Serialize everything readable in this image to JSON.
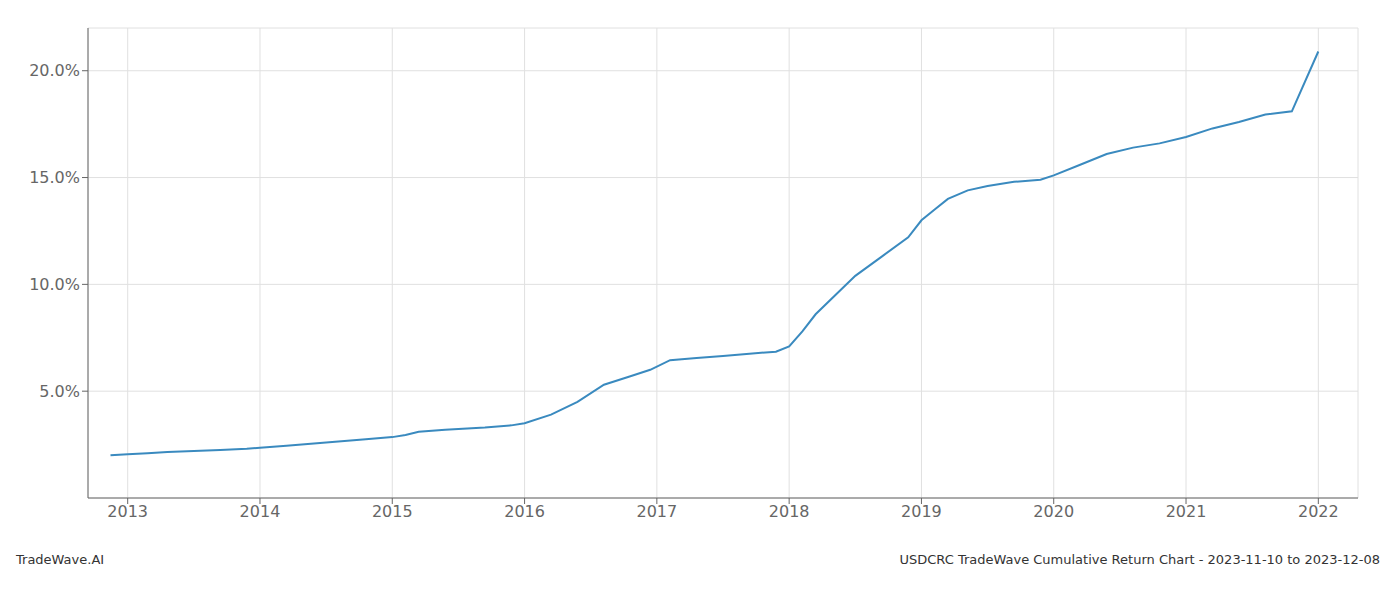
{
  "chart_data": {
    "type": "line",
    "annotations": [
      "TradeWave.AI",
      "USDCRC TradeWave Cumulative Return Chart - 2023-11-10 to 2023-12-08"
    ],
    "x": [
      2012.87,
      2013.0,
      2013.15,
      2013.3,
      2013.5,
      2013.7,
      2013.9,
      2014.0,
      2014.2,
      2014.5,
      2014.8,
      2015.0,
      2015.1,
      2015.2,
      2015.4,
      2015.7,
      2015.9,
      2016.0,
      2016.2,
      2016.4,
      2016.6,
      2016.8,
      2016.95,
      2017.1,
      2017.3,
      2017.5,
      2017.7,
      2017.9,
      2018.0,
      2018.1,
      2018.2,
      2018.35,
      2018.5,
      2018.7,
      2018.9,
      2019.0,
      2019.1,
      2019.2,
      2019.35,
      2019.5,
      2019.7,
      2019.9,
      2020.0,
      2020.2,
      2020.4,
      2020.6,
      2020.8,
      2021.0,
      2021.2,
      2021.4,
      2021.6,
      2021.8,
      2022.0
    ],
    "values": [
      2.0,
      2.05,
      2.1,
      2.15,
      2.2,
      2.25,
      2.3,
      2.35,
      2.45,
      2.6,
      2.75,
      2.85,
      2.95,
      3.1,
      3.2,
      3.3,
      3.4,
      3.5,
      3.9,
      4.5,
      5.3,
      5.7,
      6.0,
      6.45,
      6.55,
      6.65,
      6.75,
      6.85,
      7.1,
      7.8,
      8.6,
      9.5,
      10.4,
      11.3,
      12.2,
      13.0,
      13.5,
      14.0,
      14.4,
      14.6,
      14.8,
      14.9,
      15.1,
      15.6,
      16.1,
      16.4,
      16.6,
      16.9,
      17.3,
      17.6,
      17.95,
      18.1,
      20.9
    ],
    "color": "#3a8abf",
    "xlim": [
      2012.7,
      2022.3
    ],
    "xticks": [
      2013,
      2014,
      2015,
      2016,
      2017,
      2018,
      2019,
      2020,
      2021,
      2022
    ],
    "ylim": [
      0,
      22
    ],
    "yticks": [
      {
        "value": 5.0,
        "label": "5.0%"
      },
      {
        "value": 10.0,
        "label": "10.0%"
      },
      {
        "value": 15.0,
        "label": "15.0%"
      },
      {
        "value": 20.0,
        "label": "20.0%"
      }
    ],
    "grid": true
  }
}
